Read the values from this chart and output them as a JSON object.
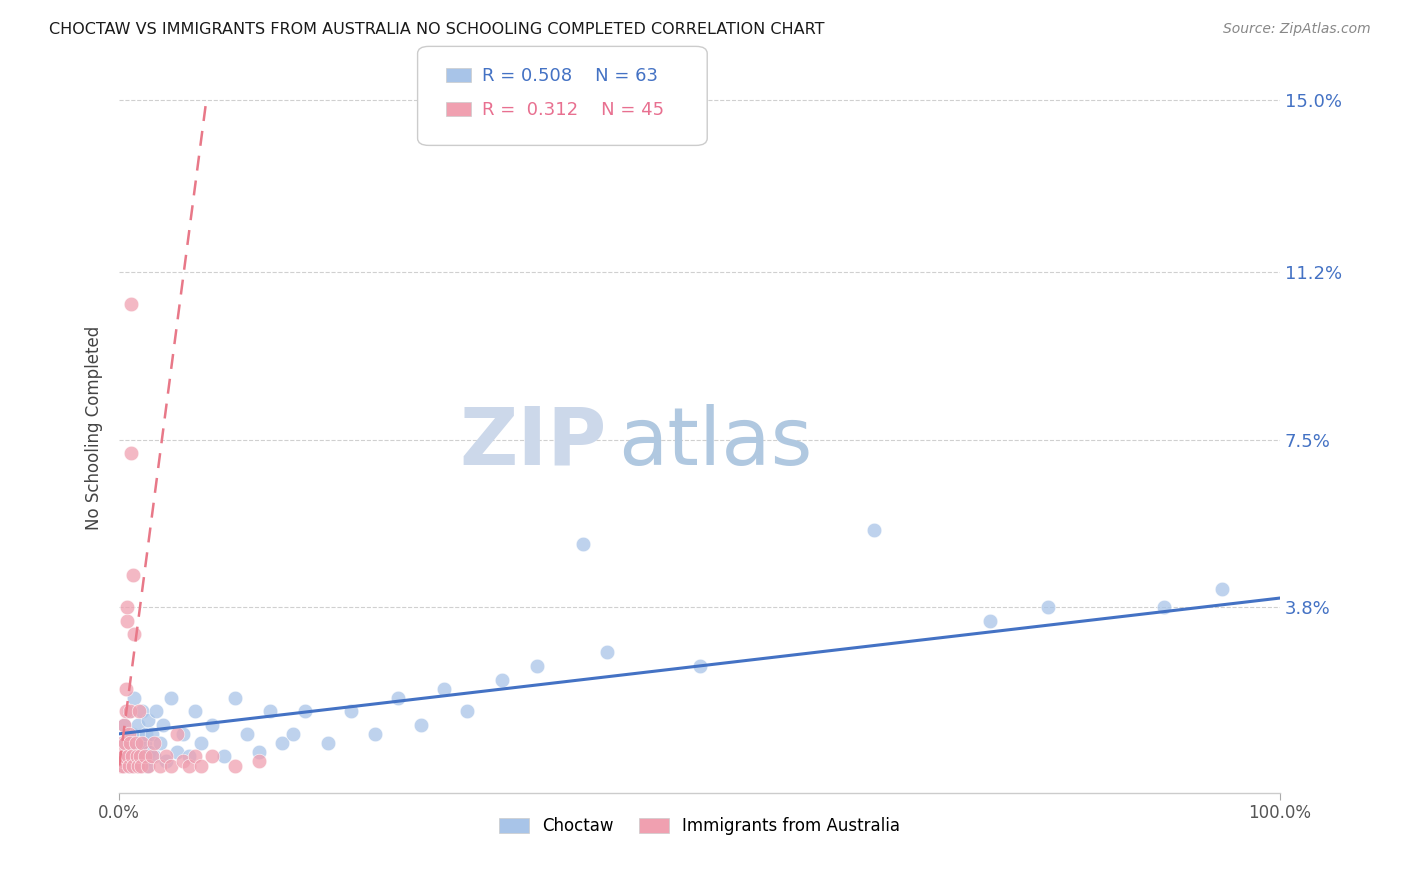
{
  "title": "CHOCTAW VS IMMIGRANTS FROM AUSTRALIA NO SCHOOLING COMPLETED CORRELATION CHART",
  "source": "Source: ZipAtlas.com",
  "ylabel": "No Schooling Completed",
  "ytick_labels": [
    "3.8%",
    "7.5%",
    "11.2%",
    "15.0%"
  ],
  "ytick_values": [
    3.8,
    7.5,
    11.2,
    15.0
  ],
  "xlim": [
    0.0,
    100.0
  ],
  "ylim": [
    -0.3,
    15.8
  ],
  "choctaw_color": "#a8c4e8",
  "australia_color": "#f0a0b0",
  "choctaw_R": 0.508,
  "choctaw_N": 63,
  "australia_R": 0.312,
  "australia_N": 45,
  "choctaw_line_color": "#4472c4",
  "australia_line_color": "#e87888",
  "choctaw_line": [
    0.0,
    1.0,
    100.0,
    4.0
  ],
  "australia_line": [
    0.0,
    0.3,
    7.5,
    15.0
  ],
  "choctaw_points": [
    [
      0.2,
      0.5
    ],
    [
      0.3,
      0.3
    ],
    [
      0.4,
      1.2
    ],
    [
      0.5,
      0.8
    ],
    [
      0.6,
      0.4
    ],
    [
      0.7,
      0.6
    ],
    [
      0.8,
      1.5
    ],
    [
      0.9,
      0.3
    ],
    [
      1.0,
      0.8
    ],
    [
      1.1,
      1.0
    ],
    [
      1.2,
      0.5
    ],
    [
      1.3,
      1.8
    ],
    [
      1.4,
      0.4
    ],
    [
      1.5,
      0.7
    ],
    [
      1.6,
      1.2
    ],
    [
      1.7,
      0.3
    ],
    [
      1.8,
      0.9
    ],
    [
      1.9,
      0.5
    ],
    [
      2.0,
      1.5
    ],
    [
      2.1,
      0.4
    ],
    [
      2.2,
      0.8
    ],
    [
      2.3,
      1.0
    ],
    [
      2.4,
      0.3
    ],
    [
      2.5,
      1.3
    ],
    [
      2.6,
      0.6
    ],
    [
      2.8,
      1.0
    ],
    [
      3.0,
      0.5
    ],
    [
      3.2,
      1.5
    ],
    [
      3.5,
      0.8
    ],
    [
      3.8,
      1.2
    ],
    [
      4.0,
      0.4
    ],
    [
      4.5,
      1.8
    ],
    [
      5.0,
      0.6
    ],
    [
      5.5,
      1.0
    ],
    [
      6.0,
      0.5
    ],
    [
      6.5,
      1.5
    ],
    [
      7.0,
      0.8
    ],
    [
      8.0,
      1.2
    ],
    [
      9.0,
      0.5
    ],
    [
      10.0,
      1.8
    ],
    [
      11.0,
      1.0
    ],
    [
      12.0,
      0.6
    ],
    [
      13.0,
      1.5
    ],
    [
      14.0,
      0.8
    ],
    [
      15.0,
      1.0
    ],
    [
      16.0,
      1.5
    ],
    [
      18.0,
      0.8
    ],
    [
      20.0,
      1.5
    ],
    [
      22.0,
      1.0
    ],
    [
      24.0,
      1.8
    ],
    [
      26.0,
      1.2
    ],
    [
      28.0,
      2.0
    ],
    [
      30.0,
      1.5
    ],
    [
      33.0,
      2.2
    ],
    [
      36.0,
      2.5
    ],
    [
      40.0,
      5.2
    ],
    [
      42.0,
      2.8
    ],
    [
      50.0,
      2.5
    ],
    [
      65.0,
      5.5
    ],
    [
      75.0,
      3.5
    ],
    [
      80.0,
      3.8
    ],
    [
      90.0,
      3.8
    ],
    [
      95.0,
      4.2
    ]
  ],
  "australia_points": [
    [
      0.15,
      0.3
    ],
    [
      0.2,
      0.5
    ],
    [
      0.25,
      0.8
    ],
    [
      0.3,
      0.4
    ],
    [
      0.35,
      0.3
    ],
    [
      0.4,
      0.5
    ],
    [
      0.45,
      1.2
    ],
    [
      0.5,
      0.8
    ],
    [
      0.55,
      2.0
    ],
    [
      0.6,
      1.5
    ],
    [
      0.65,
      3.5
    ],
    [
      0.7,
      3.8
    ],
    [
      0.75,
      0.5
    ],
    [
      0.8,
      1.0
    ],
    [
      0.85,
      0.3
    ],
    [
      0.9,
      0.8
    ],
    [
      0.95,
      1.5
    ],
    [
      1.0,
      7.2
    ],
    [
      1.05,
      10.5
    ],
    [
      1.1,
      0.5
    ],
    [
      1.15,
      0.3
    ],
    [
      1.2,
      4.5
    ],
    [
      1.3,
      3.2
    ],
    [
      1.4,
      0.8
    ],
    [
      1.5,
      0.5
    ],
    [
      1.6,
      0.3
    ],
    [
      1.7,
      1.5
    ],
    [
      1.8,
      0.5
    ],
    [
      1.9,
      0.3
    ],
    [
      2.0,
      0.8
    ],
    [
      2.2,
      0.5
    ],
    [
      2.5,
      0.3
    ],
    [
      2.8,
      0.5
    ],
    [
      3.0,
      0.8
    ],
    [
      3.5,
      0.3
    ],
    [
      4.0,
      0.5
    ],
    [
      4.5,
      0.3
    ],
    [
      5.0,
      1.0
    ],
    [
      5.5,
      0.4
    ],
    [
      6.0,
      0.3
    ],
    [
      6.5,
      0.5
    ],
    [
      7.0,
      0.3
    ],
    [
      8.0,
      0.5
    ],
    [
      10.0,
      0.3
    ],
    [
      12.0,
      0.4
    ]
  ]
}
